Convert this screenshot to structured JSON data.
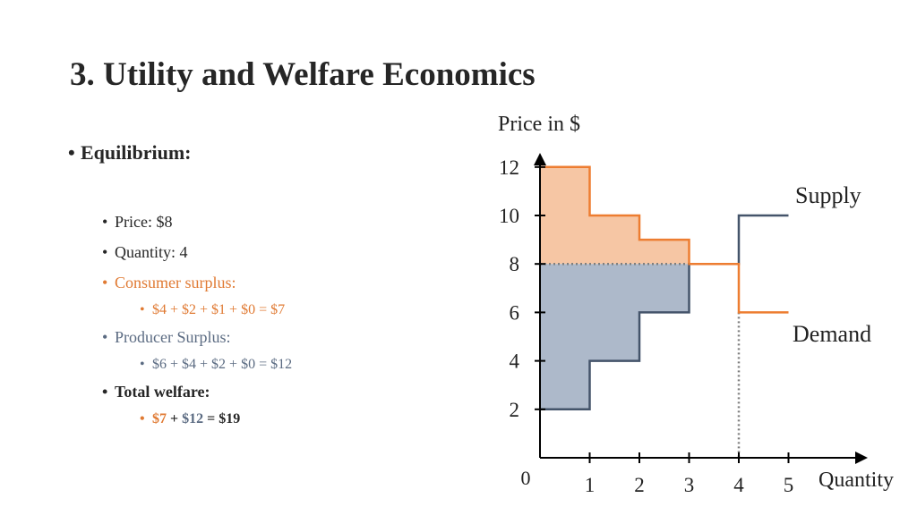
{
  "slide": {
    "title": "3. Utility and Welfare Economics",
    "heading": "Equilibrium:",
    "price": "Price: $8",
    "quantity": "Quantity: 4",
    "cs_label": "Consumer surplus:",
    "cs_calc": "$4 + $2 + $1 + $0 = $7",
    "ps_label": "Producer Surplus:",
    "ps_calc": "$6 + $4 + $2 + $0 = $12",
    "tw_label": "Total welfare:",
    "tw_cs": "$7",
    "tw_plus": "+",
    "tw_ps": "$12",
    "tw_eq": "= $19",
    "bullet": "•"
  },
  "colors": {
    "supply": "#44546a",
    "demand": "#ed7d31",
    "consumer_surplus_fill": "#f6c6a4",
    "producer_surplus_fill": "#adb9ca",
    "text_orange": "#e07a33",
    "text_blue": "#5b6b82"
  },
  "chart_data": {
    "type": "line",
    "ylabel": "Price in $",
    "xlabel": "Quantity",
    "origin_label": "0",
    "x_ticks": [
      1,
      2,
      3,
      4,
      5
    ],
    "y_ticks": [
      2,
      4,
      6,
      8,
      10,
      12
    ],
    "xlim": [
      0,
      5.5
    ],
    "ylim": [
      0,
      12.5
    ],
    "series": [
      {
        "name": "Supply",
        "steps": [
          [
            0,
            2
          ],
          [
            1,
            2
          ],
          [
            1,
            4
          ],
          [
            2,
            4
          ],
          [
            2,
            6
          ],
          [
            3,
            6
          ],
          [
            3,
            8
          ],
          [
            4,
            8
          ],
          [
            4,
            10
          ],
          [
            5,
            10
          ]
        ]
      },
      {
        "name": "Demand",
        "steps": [
          [
            0,
            12
          ],
          [
            1,
            12
          ],
          [
            1,
            10
          ],
          [
            2,
            10
          ],
          [
            2,
            9
          ],
          [
            3,
            9
          ],
          [
            3,
            8
          ],
          [
            4,
            8
          ],
          [
            4,
            6
          ],
          [
            5,
            6
          ]
        ]
      }
    ],
    "equilibrium": {
      "price": 8,
      "quantity": 4
    },
    "consumer_surplus": {
      "value": 7
    },
    "producer_surplus": {
      "value": 12
    }
  }
}
